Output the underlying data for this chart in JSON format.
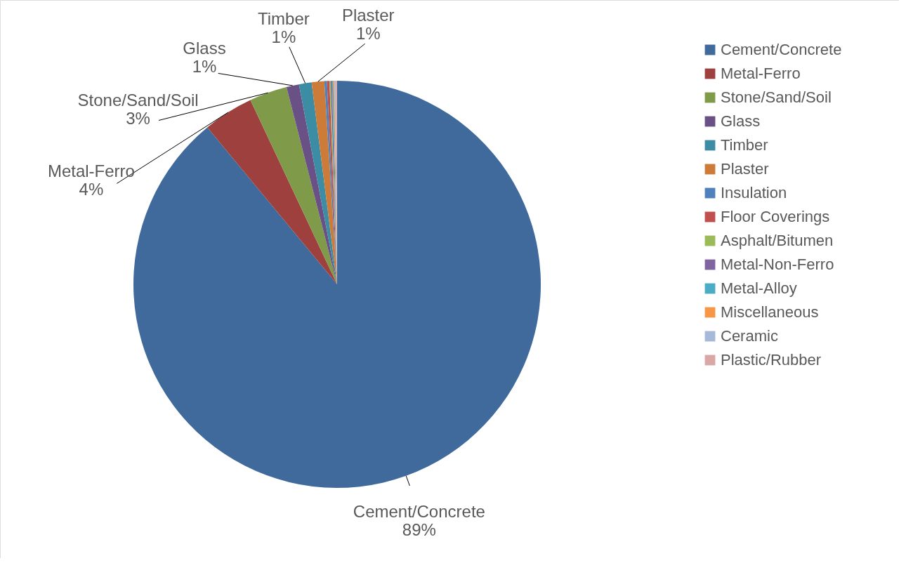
{
  "chart_data": {
    "type": "pie",
    "categories": [
      "Cement/Concrete",
      "Metal-Ferro",
      "Stone/Sand/Soil",
      "Glass",
      "Timber",
      "Plaster",
      "Insulation",
      "Floor Coverings",
      "Asphalt/Bitumen",
      "Metal-Non-Ferro",
      "Metal-Alloy",
      "Miscellaneous",
      "Ceramic",
      "Plastic/Rubber"
    ],
    "values": [
      89,
      4,
      3,
      1,
      1,
      1,
      0.2,
      0.2,
      0.1,
      0.1,
      0.1,
      0.1,
      0.1,
      0.1
    ],
    "colors": [
      "#416a9c",
      "#9e413e",
      "#7f9a48",
      "#695185",
      "#3c8da3",
      "#cc7b38",
      "#4f81bd",
      "#c0504d",
      "#9bbb59",
      "#8064a2",
      "#4bacc6",
      "#f79646",
      "#a7b9d8",
      "#d9a7a6"
    ],
    "value_labels": [
      "89%",
      "4%",
      "3%",
      "1%",
      "1%",
      "1%",
      null,
      null,
      null,
      null,
      null,
      null,
      null,
      null
    ],
    "legend": "right"
  }
}
